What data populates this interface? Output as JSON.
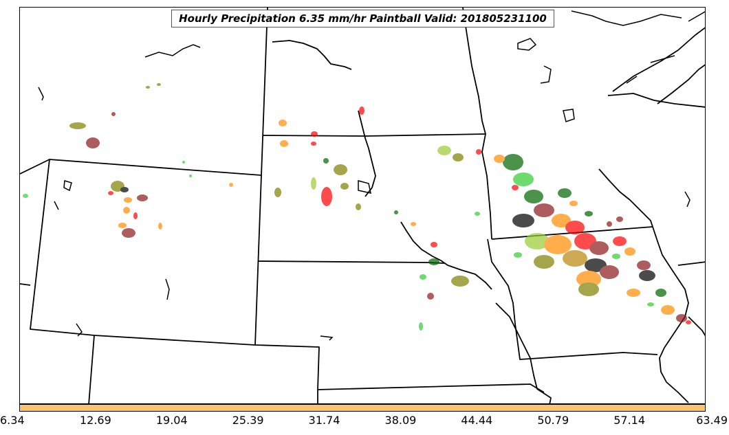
{
  "title": "Hourly Precipitation 6.35 mm/hr Paintball Valid: 201805231100",
  "colorbar": {
    "fill_color": "#ffc36b",
    "tick_labels": [
      "6.34",
      "12.69",
      "19.04",
      "25.39",
      "31.74",
      "38.09",
      "44.44",
      "50.79",
      "57.14",
      "63.49"
    ]
  },
  "member_colors": [
    "#ff0000",
    "#ff8c00",
    "#8b1a1a",
    "#32cd32",
    "#808000",
    "#9acd32",
    "#006400",
    "#000000",
    "#b8860b"
  ]
}
